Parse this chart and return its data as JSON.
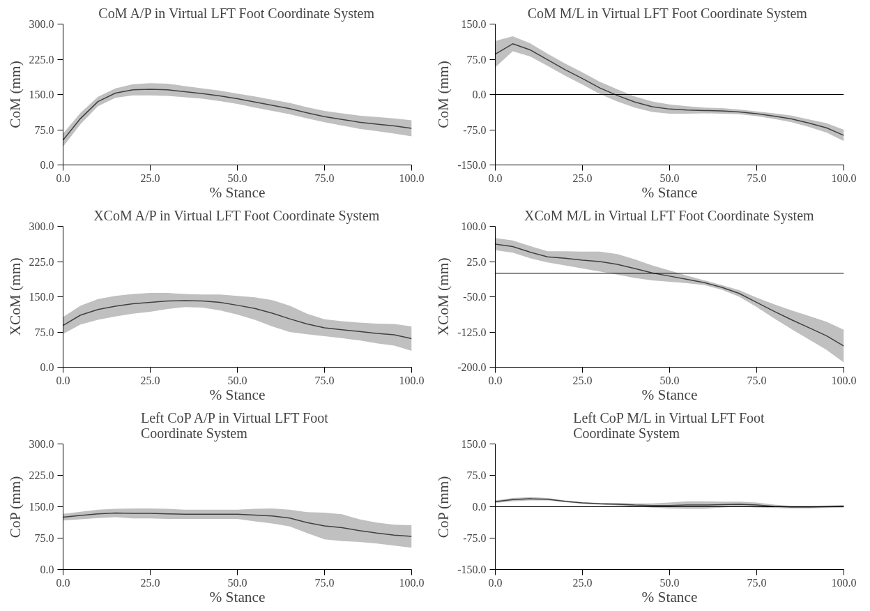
{
  "chart_data": [
    {
      "type": "line",
      "title": "CoM A/P in Virtual LFT Foot Coordinate System",
      "xlabel": "% Stance",
      "ylabel": "CoM (mm)",
      "x": [
        0,
        5,
        10,
        15,
        20,
        25,
        30,
        35,
        40,
        45,
        50,
        55,
        60,
        65,
        70,
        75,
        80,
        85,
        90,
        95,
        100
      ],
      "series": [
        {
          "color": "#404040",
          "values": [
            53,
            99,
            135,
            153,
            160,
            161,
            160,
            156,
            152,
            147,
            141,
            134,
            127,
            120,
            111,
            103,
            97,
            91,
            87,
            83,
            78
          ],
          "lower": [
            39,
            87,
            125,
            143,
            148,
            148,
            147,
            144,
            141,
            136,
            130,
            122,
            115,
            108,
            99,
            91,
            84,
            77,
            72,
            67,
            61
          ],
          "upper": [
            67,
            111,
            145,
            163,
            172,
            174,
            173,
            168,
            163,
            158,
            152,
            146,
            139,
            132,
            123,
            115,
            110,
            105,
            102,
            99,
            95
          ]
        }
      ],
      "xlim": [
        0,
        100
      ],
      "xticks": [
        {
          "value": 0,
          "label": "0.0"
        },
        {
          "value": 25,
          "label": "25.0"
        },
        {
          "value": 50,
          "label": "50.0"
        },
        {
          "value": 75,
          "label": "75.0"
        },
        {
          "value": 100,
          "label": "100.0"
        }
      ],
      "ylim": [
        0,
        300
      ],
      "yticks": [
        {
          "value": 0,
          "label": "0.0"
        },
        {
          "value": 75,
          "label": "75.0"
        },
        {
          "value": 150,
          "label": "150.0"
        },
        {
          "value": 225,
          "label": "225.0"
        },
        {
          "value": 300,
          "label": "300.0"
        }
      ],
      "line_style": "solid"
    },
    {
      "type": "line",
      "title": "CoM M/L  in Virtual LFT Foot Coordinate System",
      "xlabel": "% Stance",
      "ylabel": "CoM (mm)",
      "x": [
        0,
        5,
        10,
        15,
        20,
        25,
        30,
        35,
        40,
        45,
        50,
        55,
        60,
        65,
        70,
        75,
        80,
        85,
        90,
        95,
        100
      ],
      "series": [
        {
          "color": "#404040",
          "values": [
            86,
            108,
            95,
            74,
            53,
            34,
            14,
            -2,
            -16,
            -26,
            -31,
            -33,
            -34,
            -35,
            -37,
            -41,
            -46,
            -52,
            -61,
            -71,
            -87
          ],
          "lower": [
            58,
            92,
            81,
            61,
            40,
            21,
            1,
            -15,
            -28,
            -37,
            -41,
            -41,
            -40,
            -41,
            -42,
            -46,
            -52,
            -59,
            -69,
            -81,
            -99
          ],
          "upper": [
            114,
            124,
            109,
            87,
            66,
            47,
            27,
            11,
            -4,
            -15,
            -21,
            -25,
            -28,
            -29,
            -32,
            -36,
            -40,
            -45,
            -53,
            -61,
            -75
          ]
        }
      ],
      "xlim": [
        0,
        100
      ],
      "xticks": [
        {
          "value": 0,
          "label": "0.0"
        },
        {
          "value": 25,
          "label": "25.0"
        },
        {
          "value": 50,
          "label": "50.0"
        },
        {
          "value": 75,
          "label": "75.0"
        },
        {
          "value": 100,
          "label": "100.0"
        }
      ],
      "ylim": [
        -150,
        150
      ],
      "yticks": [
        {
          "value": -150,
          "label": "-150.0"
        },
        {
          "value": -75,
          "label": "-75.0"
        },
        {
          "value": 0,
          "label": "0.0"
        },
        {
          "value": 75,
          "label": "75.0"
        },
        {
          "value": 150,
          "label": "150.0"
        }
      ],
      "ref_lines": [
        {
          "axis": "y",
          "value": 0,
          "color": "#000000"
        }
      ],
      "line_style": "solid"
    },
    {
      "type": "line",
      "title": "XCoM A/P in Virtual LFT Foot Coordinate System",
      "xlabel": "% Stance",
      "ylabel": "XCoM (mm)",
      "x": [
        0,
        5,
        10,
        15,
        20,
        25,
        30,
        35,
        40,
        45,
        50,
        55,
        60,
        65,
        70,
        75,
        80,
        85,
        90,
        95,
        100
      ],
      "series": [
        {
          "color": "#404040",
          "values": [
            89,
            111,
            123,
            130,
            135,
            138,
            141,
            142,
            141,
            138,
            132,
            125,
            115,
            103,
            92,
            84,
            80,
            76,
            72,
            69,
            61
          ],
          "lower": [
            71,
            91,
            101,
            108,
            114,
            118,
            124,
            128,
            127,
            121,
            112,
            101,
            87,
            75,
            70,
            66,
            62,
            57,
            51,
            46,
            35
          ],
          "upper": [
            107,
            131,
            145,
            152,
            156,
            158,
            158,
            156,
            155,
            155,
            152,
            149,
            143,
            131,
            114,
            102,
            98,
            95,
            93,
            92,
            87
          ]
        }
      ],
      "xlim": [
        0,
        100
      ],
      "xticks": [
        {
          "value": 0,
          "label": "0.0"
        },
        {
          "value": 25,
          "label": "25.0"
        },
        {
          "value": 50,
          "label": "50.0"
        },
        {
          "value": 75,
          "label": "75.0"
        },
        {
          "value": 100,
          "label": "100.0"
        }
      ],
      "ylim": [
        0,
        300
      ],
      "yticks": [
        {
          "value": 0,
          "label": "0.0"
        },
        {
          "value": 75,
          "label": "75.0"
        },
        {
          "value": 150,
          "label": "150.0"
        },
        {
          "value": 225,
          "label": "225.0"
        },
        {
          "value": 300,
          "label": "300.0"
        }
      ],
      "line_style": "solid"
    },
    {
      "type": "line",
      "title": "XCoM M/L in Virtual LFT Foot Coordinate System",
      "xlabel": "% Stance",
      "ylabel": "XCoM (mm)",
      "x": [
        0,
        5,
        10,
        15,
        20,
        25,
        30,
        35,
        40,
        45,
        50,
        55,
        60,
        65,
        70,
        75,
        80,
        85,
        90,
        95,
        100
      ],
      "series": [
        {
          "color": "#404040",
          "values": [
            62,
            57,
            45,
            35,
            32,
            28,
            25,
            19,
            10,
            1,
            -6,
            -13,
            -20,
            -30,
            -43,
            -62,
            -81,
            -99,
            -116,
            -133,
            -155
          ],
          "lower": [
            49,
            44,
            32,
            23,
            17,
            10,
            4,
            -3,
            -10,
            -15,
            -18,
            -21,
            -25,
            -35,
            -50,
            -72,
            -96,
            -119,
            -141,
            -163,
            -190
          ],
          "upper": [
            75,
            70,
            58,
            47,
            47,
            46,
            46,
            41,
            30,
            17,
            6,
            -5,
            -15,
            -25,
            -36,
            -52,
            -66,
            -79,
            -91,
            -103,
            -120
          ]
        }
      ],
      "xlim": [
        0,
        100
      ],
      "xticks": [
        {
          "value": 0,
          "label": "0.0"
        },
        {
          "value": 25,
          "label": "25.0"
        },
        {
          "value": 50,
          "label": "50.0"
        },
        {
          "value": 75,
          "label": "75.0"
        },
        {
          "value": 100,
          "label": "100.0"
        }
      ],
      "ylim": [
        -200,
        100
      ],
      "yticks": [
        {
          "value": -200,
          "label": "-200.0"
        },
        {
          "value": -125,
          "label": "-125.0"
        },
        {
          "value": -50,
          "label": "-50.0"
        },
        {
          "value": 25,
          "label": "25.0"
        },
        {
          "value": 100,
          "label": "100.0"
        }
      ],
      "ref_lines": [
        {
          "axis": "y",
          "value": 0,
          "color": "#000000"
        }
      ],
      "line_style": "solid"
    },
    {
      "type": "line",
      "title": "Left CoP A/P  in Virtual LFT Foot\nCoordinate System",
      "xlabel": "% Stance",
      "ylabel": "CoP (mm)",
      "x": [
        0,
        5,
        10,
        15,
        20,
        25,
        30,
        35,
        40,
        45,
        50,
        55,
        60,
        65,
        70,
        75,
        80,
        85,
        90,
        95,
        100
      ],
      "series": [
        {
          "color": "#404040",
          "values": [
            125,
            129,
            133,
            135,
            134,
            134,
            133,
            132,
            132,
            132,
            132,
            130,
            128,
            123,
            112,
            104,
            100,
            93,
            87,
            82,
            79
          ],
          "lower": [
            117,
            120,
            123,
            125,
            122,
            122,
            121,
            121,
            121,
            121,
            121,
            115,
            110,
            103,
            87,
            72,
            68,
            66,
            62,
            57,
            52
          ],
          "upper": [
            133,
            138,
            143,
            145,
            146,
            146,
            145,
            143,
            143,
            143,
            143,
            145,
            146,
            143,
            137,
            136,
            132,
            120,
            112,
            107,
            106
          ]
        }
      ],
      "xlim": [
        0,
        100
      ],
      "xticks": [
        {
          "value": 0,
          "label": "0.0"
        },
        {
          "value": 25,
          "label": "25.0"
        },
        {
          "value": 50,
          "label": "50.0"
        },
        {
          "value": 75,
          "label": "75.0"
        },
        {
          "value": 100,
          "label": "100.0"
        }
      ],
      "ylim": [
        0,
        300
      ],
      "yticks": [
        {
          "value": 0,
          "label": "0.0"
        },
        {
          "value": 75,
          "label": "75.0"
        },
        {
          "value": 150,
          "label": "150.0"
        },
        {
          "value": 225,
          "label": "225.0"
        },
        {
          "value": 300,
          "label": "300.0"
        }
      ],
      "line_style": "solid"
    },
    {
      "type": "line",
      "title": "Left CoP M/L in Virtual LFT Foot\nCoordinate System",
      "xlabel": "% Stance",
      "ylabel": "CoP (mm)",
      "x": [
        0,
        5,
        10,
        15,
        20,
        25,
        30,
        35,
        40,
        45,
        50,
        55,
        60,
        65,
        70,
        75,
        80,
        85,
        90,
        95,
        100
      ],
      "series": [
        {
          "color": "#404040",
          "values": [
            12,
            17,
            19,
            18,
            13,
            9,
            7,
            6,
            4,
            3,
            3,
            4,
            4,
            5,
            6,
            4,
            1,
            -1,
            -1,
            0,
            1
          ],
          "lower": [
            9,
            13,
            15,
            15,
            11,
            7,
            5,
            3,
            0,
            -2,
            -4,
            -5,
            -5,
            -2,
            0,
            -2,
            -3,
            -4,
            -4,
            -3,
            -2
          ],
          "upper": [
            15,
            21,
            23,
            21,
            15,
            11,
            9,
            9,
            8,
            8,
            10,
            13,
            13,
            12,
            12,
            10,
            5,
            2,
            2,
            3,
            4
          ]
        }
      ],
      "xlim": [
        0,
        100
      ],
      "xticks": [
        {
          "value": 0,
          "label": "0.0"
        },
        {
          "value": 25,
          "label": "25.0"
        },
        {
          "value": 50,
          "label": "50.0"
        },
        {
          "value": 75,
          "label": "75.0"
        },
        {
          "value": 100,
          "label": "100.0"
        }
      ],
      "ylim": [
        -150,
        150
      ],
      "yticks": [
        {
          "value": -150,
          "label": "-150.0"
        },
        {
          "value": -75,
          "label": "-75.0"
        },
        {
          "value": 0,
          "label": "0.0"
        },
        {
          "value": 75,
          "label": "75.0"
        },
        {
          "value": 150,
          "label": "150.0"
        }
      ],
      "ref_lines": [
        {
          "axis": "y",
          "value": 0,
          "color": "#000000"
        }
      ],
      "line_style": "solid"
    }
  ]
}
